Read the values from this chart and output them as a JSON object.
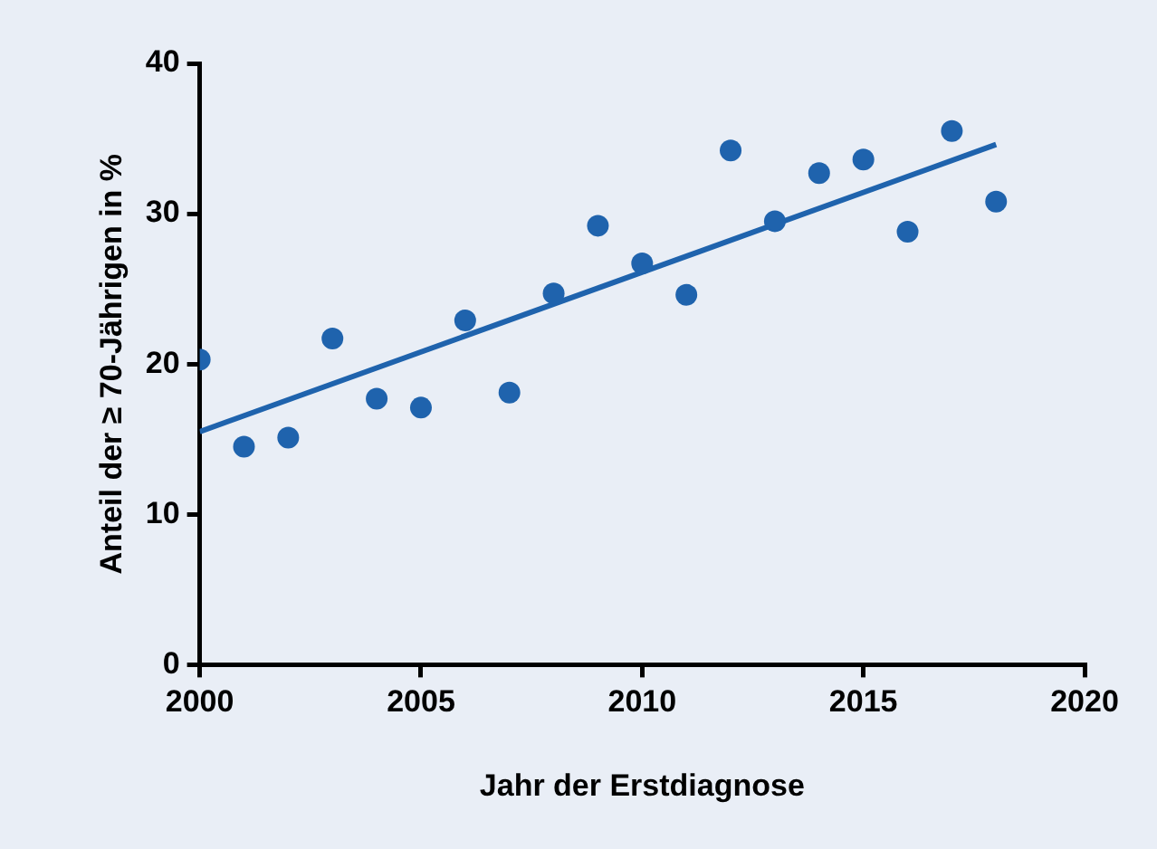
{
  "chart_data": {
    "type": "scatter",
    "xlabel": "Jahr der Erstdiagnose",
    "ylabel": "Anteil der ≥ 70-Jährigen in %",
    "xlim": [
      2000,
      2020
    ],
    "xticks": [
      2000,
      2005,
      2010,
      2015,
      2020
    ],
    "ylim": [
      0,
      40
    ],
    "yticks": [
      0,
      10,
      20,
      30,
      40
    ],
    "grid": false,
    "legend": false,
    "series": [
      {
        "type": "scatter",
        "marker": "circle",
        "color": "#1f63ad",
        "x": [
          2000,
          2001,
          2002,
          2003,
          2004,
          2005,
          2006,
          2007,
          2008,
          2009,
          2010,
          2011,
          2012,
          2013,
          2014,
          2015,
          2016,
          2017,
          2018
        ],
        "values": [
          20.3,
          14.5,
          15.1,
          21.7,
          17.7,
          17.1,
          22.9,
          18.1,
          24.7,
          29.2,
          26.7,
          24.6,
          34.2,
          29.5,
          32.7,
          33.6,
          28.8,
          35.5,
          30.8
        ]
      },
      {
        "type": "line",
        "color": "#1f63ad",
        "x": [
          2000,
          2018
        ],
        "values": [
          15.5,
          34.6
        ],
        "line_style": "solid"
      }
    ]
  }
}
